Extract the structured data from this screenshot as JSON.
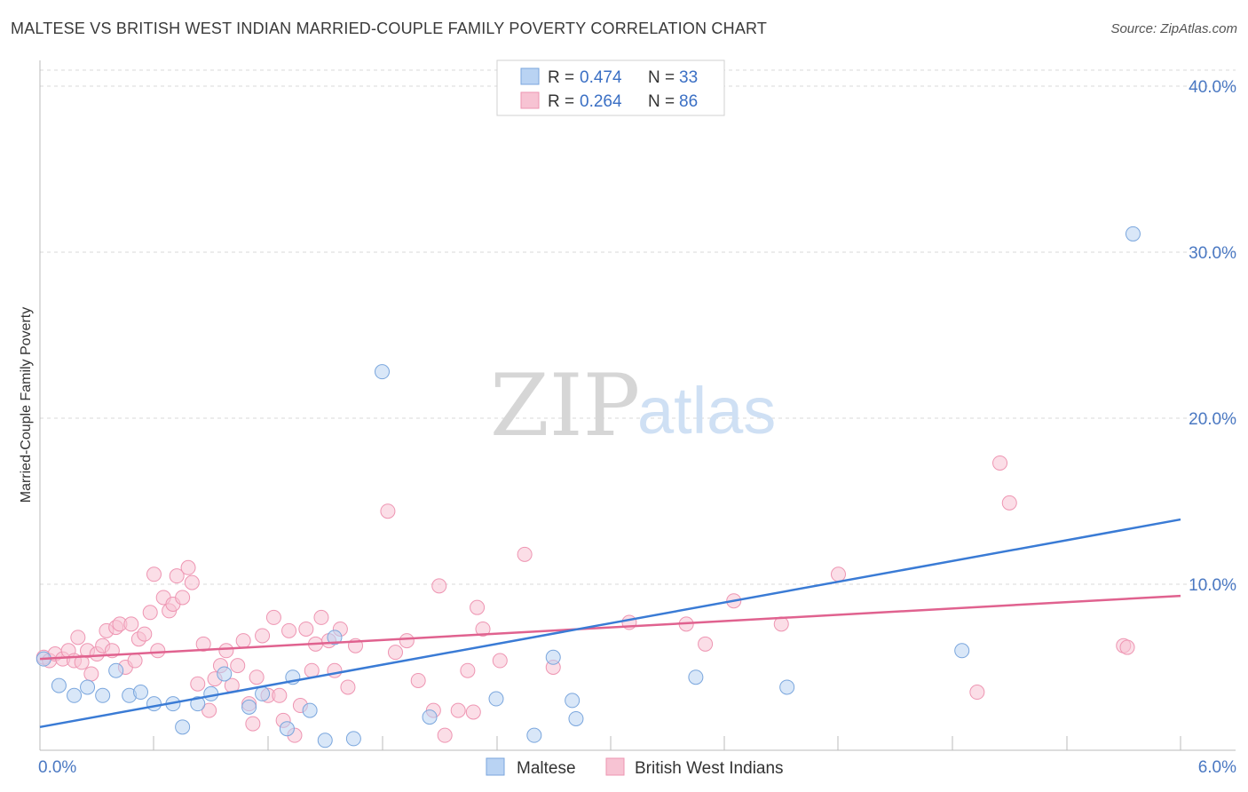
{
  "title": "MALTESE VS BRITISH WEST INDIAN MARRIED-COUPLE FAMILY POVERTY CORRELATION CHART",
  "source": "Source: ZipAtlas.com",
  "watermark": {
    "zip": "ZIP",
    "atlas": "atlas"
  },
  "colors": {
    "maltese_fill": "#b9d3f3",
    "maltese_stroke": "#7aa6dd",
    "maltese_line": "#3a7bd5",
    "bwi_fill": "#f7c3d3",
    "bwi_stroke": "#ee95b2",
    "bwi_line": "#e0628f",
    "tick_label": "#4a78c2",
    "grid": "#d8d8d8"
  },
  "legend": {
    "rows": [
      {
        "r_label": "R =",
        "r_value": "0.474",
        "n_label": "N =",
        "n_value": "33"
      },
      {
        "r_label": "R =",
        "r_value": "0.264",
        "n_label": "N =",
        "n_value": "86"
      }
    ]
  },
  "chart_data": {
    "type": "scatter",
    "title": "MALTESE VS BRITISH WEST INDIAN MARRIED-COUPLE FAMILY POVERTY CORRELATION CHART",
    "xlabel": "",
    "ylabel": "Married-Couple Family Poverty",
    "xlim": [
      0,
      6
    ],
    "ylim": [
      0,
      40
    ],
    "x_tick_labels": [
      "0.0%",
      "6.0%"
    ],
    "y_ticks": [
      10,
      20,
      30,
      40
    ],
    "y_tick_labels": [
      "10.0%",
      "20.0%",
      "30.0%",
      "40.0%"
    ],
    "grid": true,
    "legend_position": "top-center",
    "series": [
      {
        "name": "Maltese",
        "R": 0.474,
        "N": 33,
        "trend": {
          "x0": 0,
          "y0": 1.4,
          "x1": 6,
          "y1": 13.9
        },
        "points": [
          [
            0.02,
            5.5
          ],
          [
            0.1,
            3.9
          ],
          [
            0.18,
            3.3
          ],
          [
            0.25,
            3.8
          ],
          [
            0.33,
            3.3
          ],
          [
            0.4,
            4.8
          ],
          [
            0.47,
            3.3
          ],
          [
            0.53,
            3.5
          ],
          [
            0.6,
            2.8
          ],
          [
            0.7,
            2.8
          ],
          [
            0.75,
            1.4
          ],
          [
            0.83,
            2.8
          ],
          [
            0.9,
            3.4
          ],
          [
            0.97,
            4.6
          ],
          [
            1.1,
            2.6
          ],
          [
            1.17,
            3.4
          ],
          [
            1.3,
            1.3
          ],
          [
            1.33,
            4.4
          ],
          [
            1.42,
            2.4
          ],
          [
            1.5,
            0.6
          ],
          [
            1.55,
            6.8
          ],
          [
            1.65,
            0.7
          ],
          [
            1.8,
            22.8
          ],
          [
            2.05,
            2.0
          ],
          [
            2.4,
            3.1
          ],
          [
            2.6,
            0.9
          ],
          [
            2.7,
            5.6
          ],
          [
            2.8,
            3.0
          ],
          [
            2.82,
            1.9
          ],
          [
            3.45,
            4.4
          ],
          [
            3.93,
            3.8
          ],
          [
            4.85,
            6.0
          ],
          [
            5.75,
            31.1
          ]
        ]
      },
      {
        "name": "British West Indians",
        "R": 0.264,
        "N": 86,
        "trend": {
          "x0": 0,
          "y0": 5.5,
          "x1": 6,
          "y1": 9.3
        },
        "points": [
          [
            0.02,
            5.6
          ],
          [
            0.05,
            5.4
          ],
          [
            0.08,
            5.8
          ],
          [
            0.12,
            5.5
          ],
          [
            0.15,
            6.0
          ],
          [
            0.18,
            5.4
          ],
          [
            0.2,
            6.8
          ],
          [
            0.22,
            5.3
          ],
          [
            0.25,
            6.0
          ],
          [
            0.27,
            4.6
          ],
          [
            0.3,
            5.8
          ],
          [
            0.33,
            6.3
          ],
          [
            0.35,
            7.2
          ],
          [
            0.38,
            6.0
          ],
          [
            0.4,
            7.4
          ],
          [
            0.42,
            7.6
          ],
          [
            0.45,
            5.0
          ],
          [
            0.48,
            7.6
          ],
          [
            0.5,
            5.4
          ],
          [
            0.52,
            6.7
          ],
          [
            0.55,
            7.0
          ],
          [
            0.58,
            8.3
          ],
          [
            0.6,
            10.6
          ],
          [
            0.62,
            6.0
          ],
          [
            0.65,
            9.2
          ],
          [
            0.68,
            8.4
          ],
          [
            0.7,
            8.8
          ],
          [
            0.72,
            10.5
          ],
          [
            0.75,
            9.2
          ],
          [
            0.78,
            11.0
          ],
          [
            0.8,
            10.1
          ],
          [
            0.83,
            4.0
          ],
          [
            0.86,
            6.4
          ],
          [
            0.89,
            2.4
          ],
          [
            0.92,
            4.3
          ],
          [
            0.95,
            5.1
          ],
          [
            0.98,
            6.0
          ],
          [
            1.01,
            3.9
          ],
          [
            1.04,
            5.1
          ],
          [
            1.07,
            6.6
          ],
          [
            1.1,
            2.8
          ],
          [
            1.12,
            1.6
          ],
          [
            1.14,
            4.4
          ],
          [
            1.17,
            6.9
          ],
          [
            1.2,
            3.3
          ],
          [
            1.23,
            8.0
          ],
          [
            1.26,
            3.3
          ],
          [
            1.28,
            1.8
          ],
          [
            1.31,
            7.2
          ],
          [
            1.34,
            0.9
          ],
          [
            1.37,
            2.7
          ],
          [
            1.4,
            7.3
          ],
          [
            1.43,
            4.8
          ],
          [
            1.45,
            6.4
          ],
          [
            1.48,
            8.0
          ],
          [
            1.52,
            6.6
          ],
          [
            1.55,
            4.8
          ],
          [
            1.58,
            7.3
          ],
          [
            1.62,
            3.8
          ],
          [
            1.66,
            6.3
          ],
          [
            1.83,
            14.4
          ],
          [
            1.87,
            5.9
          ],
          [
            1.93,
            6.6
          ],
          [
            1.99,
            4.2
          ],
          [
            2.07,
            2.4
          ],
          [
            2.1,
            9.9
          ],
          [
            2.13,
            0.9
          ],
          [
            2.2,
            2.4
          ],
          [
            2.25,
            4.8
          ],
          [
            2.28,
            2.3
          ],
          [
            2.3,
            8.6
          ],
          [
            2.33,
            7.3
          ],
          [
            2.42,
            5.4
          ],
          [
            2.55,
            11.8
          ],
          [
            2.7,
            5.0
          ],
          [
            3.1,
            7.7
          ],
          [
            3.4,
            7.6
          ],
          [
            3.5,
            6.4
          ],
          [
            3.65,
            9.0
          ],
          [
            3.9,
            7.6
          ],
          [
            4.2,
            10.6
          ],
          [
            4.93,
            3.5
          ],
          [
            5.05,
            17.3
          ],
          [
            5.1,
            14.9
          ],
          [
            5.7,
            6.3
          ],
          [
            5.72,
            6.2
          ]
        ]
      }
    ]
  },
  "bottom_legend": {
    "items": [
      "Maltese",
      "British West Indians"
    ]
  }
}
